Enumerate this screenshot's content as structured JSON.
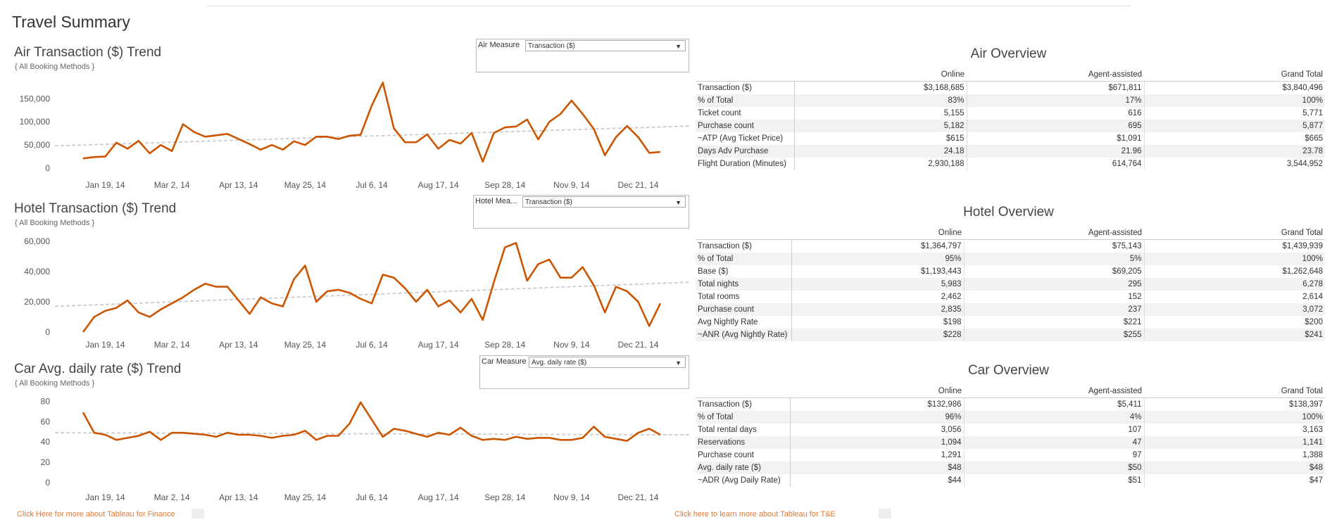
{
  "dashboard": {
    "title": "Travel Summary"
  },
  "colors": {
    "line": "#cc5500",
    "trend": "#cccccc",
    "link": "#e8762d",
    "row_alt": "#f2f2f2"
  },
  "charts": {
    "air": {
      "title": "Air Transaction ($) Trend",
      "subtitle": "{ All Booking Methods }",
      "filter_label": "Air Measure",
      "filter_value": "Transaction ($)"
    },
    "hotel": {
      "title": "Hotel Transaction ($) Trend",
      "subtitle": "{ All Booking Methods }",
      "filter_label": "Hotel Mea...",
      "filter_value": "Transaction ($)"
    },
    "car": {
      "title": "Car Avg. daily rate ($) Trend",
      "subtitle": "{ All Booking Methods }",
      "filter_label": "Car Measure",
      "filter_value": "Avg. daily rate ($)"
    }
  },
  "chart_data": [
    {
      "type": "line",
      "title": "Air Transaction ($) Trend",
      "x_tick_labels": [
        "Jan 19, 14",
        "Mar 2, 14",
        "Apr 13, 14",
        "May 25, 14",
        "Jul 6, 14",
        "Aug 17, 14",
        "Sep 28, 14",
        "Nov 9, 14",
        "Dec 21, 14"
      ],
      "x_range": [
        "Jan 5, 14",
        "Dec 28, 14"
      ],
      "y_ticks": [
        0,
        50000,
        100000,
        150000
      ],
      "y_tick_labels": [
        "0",
        "50,000",
        "100,000",
        "150,000"
      ],
      "ylim": [
        0,
        190000
      ],
      "values": [
        21000,
        24000,
        25000,
        55000,
        42000,
        59000,
        32000,
        50000,
        37000,
        95000,
        78000,
        68000,
        71000,
        74000,
        63000,
        52000,
        40000,
        50000,
        40000,
        58000,
        50000,
        68000,
        68000,
        63000,
        70000,
        72000,
        135000,
        185000,
        86000,
        56000,
        56000,
        73000,
        42000,
        61000,
        53000,
        76000,
        14000,
        76000,
        88000,
        90000,
        105000,
        62000,
        100000,
        117000,
        146000,
        117000,
        85000,
        28000,
        67000,
        91000,
        67000,
        33000,
        35000
      ],
      "trend_line": {
        "start": 48000,
        "end": 91000
      },
      "grid": false
    },
    {
      "type": "line",
      "title": "Hotel Transaction ($) Trend",
      "x_tick_labels": [
        "Jan 19, 14",
        "Mar 2, 14",
        "Apr 13, 14",
        "May 25, 14",
        "Jul 6, 14",
        "Aug 17, 14",
        "Sep 28, 14",
        "Nov 9, 14",
        "Dec 21, 14"
      ],
      "x_range": [
        "Jan 5, 14",
        "Dec 28, 14"
      ],
      "y_ticks": [
        0,
        20000,
        40000,
        60000
      ],
      "y_tick_labels": [
        "0",
        "20,000",
        "40,000",
        "60,000"
      ],
      "ylim": [
        0,
        61000
      ],
      "values": [
        0,
        10000,
        14000,
        16000,
        21000,
        13000,
        10000,
        15000,
        19000,
        23000,
        28000,
        32000,
        30000,
        30000,
        21000,
        12000,
        23000,
        19000,
        17000,
        35000,
        44000,
        20000,
        27000,
        28000,
        26000,
        22000,
        19000,
        38000,
        36000,
        29000,
        20000,
        28000,
        17000,
        21000,
        13000,
        22000,
        8000,
        33000,
        56000,
        59000,
        34000,
        45000,
        48000,
        36000,
        36000,
        43000,
        31000,
        13000,
        30000,
        27000,
        20000,
        4000,
        19000
      ],
      "trend_line": {
        "start": 17000,
        "end": 33000
      },
      "grid": false
    },
    {
      "type": "line",
      "title": "Car Avg. daily rate ($) Trend",
      "x_tick_labels": [
        "Jan 19, 14",
        "Mar 2, 14",
        "Apr 13, 14",
        "May 25, 14",
        "Jul 6, 14",
        "Aug 17, 14",
        "Sep 28, 14",
        "Nov 9, 14",
        "Dec 21, 14"
      ],
      "x_range": [
        "Jan 5, 14",
        "Dec 28, 14"
      ],
      "y_ticks": [
        0,
        20,
        40,
        60,
        80
      ],
      "y_tick_labels": [
        "0",
        "20",
        "40",
        "60",
        "80"
      ],
      "ylim": [
        0,
        83
      ],
      "values": [
        69,
        49,
        47,
        42,
        44,
        46,
        50,
        42,
        49,
        49,
        48,
        47,
        45,
        49,
        47,
        47,
        46,
        44,
        46,
        47,
        51,
        42,
        46,
        46,
        58,
        79,
        62,
        45,
        53,
        51,
        48,
        45,
        49,
        47,
        54,
        46,
        42,
        43,
        42,
        45,
        43,
        44,
        44,
        42,
        42,
        44,
        55,
        45,
        43,
        41,
        49,
        53,
        47
      ],
      "trend_line": {
        "start": 49,
        "end": 47
      },
      "grid": false
    }
  ],
  "overviews": {
    "columns": [
      "Online",
      "Agent-assisted",
      "Grand Total"
    ],
    "air": {
      "title": "Air Overview",
      "rows": [
        {
          "label": "Transaction ($)",
          "values": [
            "$3,168,685",
            "$671,811",
            "$3,840,496"
          ]
        },
        {
          "label": "% of Total",
          "values": [
            "83%",
            "17%",
            "100%"
          ]
        },
        {
          "label": "Ticket count",
          "values": [
            "5,155",
            "616",
            "5,771"
          ]
        },
        {
          "label": "Purchase count",
          "values": [
            "5,182",
            "695",
            "5,877"
          ]
        },
        {
          "label": "~ATP (Avg Ticket Price)",
          "values": [
            "$615",
            "$1,091",
            "$665"
          ]
        },
        {
          "label": "Days Adv Purchase",
          "values": [
            "24.18",
            "21.96",
            "23.78"
          ]
        },
        {
          "label": "Flight Duration (Minutes)",
          "values": [
            "2,930,188",
            "614,764",
            "3,544,952"
          ]
        }
      ]
    },
    "hotel": {
      "title": "Hotel Overview",
      "rows": [
        {
          "label": "Transaction ($)",
          "values": [
            "$1,364,797",
            "$75,143",
            "$1,439,939"
          ]
        },
        {
          "label": "% of Total",
          "values": [
            "95%",
            "5%",
            "100%"
          ]
        },
        {
          "label": "Base ($)",
          "values": [
            "$1,193,443",
            "$69,205",
            "$1,262,648"
          ]
        },
        {
          "label": "Total nights",
          "values": [
            "5,983",
            "295",
            "6,278"
          ]
        },
        {
          "label": "Total rooms",
          "values": [
            "2,462",
            "152",
            "2,614"
          ]
        },
        {
          "label": "Purchase count",
          "values": [
            "2,835",
            "237",
            "3,072"
          ]
        },
        {
          "label": "Avg Nightly Rate",
          "values": [
            "$198",
            "$221",
            "$200"
          ]
        },
        {
          "label": "~ANR (Avg Nightly Rate)",
          "values": [
            "$228",
            "$255",
            "$241"
          ]
        }
      ]
    },
    "car": {
      "title": "Car Overview",
      "rows": [
        {
          "label": "Transaction ($)",
          "values": [
            "$132,986",
            "$5,411",
            "$138,397"
          ]
        },
        {
          "label": "% of Total",
          "values": [
            "96%",
            "4%",
            "100%"
          ]
        },
        {
          "label": "Total rental days",
          "values": [
            "3,056",
            "107",
            "3,163"
          ]
        },
        {
          "label": "Reservations",
          "values": [
            "1,094",
            "47",
            "1,141"
          ]
        },
        {
          "label": "Purchase count",
          "values": [
            "1,291",
            "97",
            "1,388"
          ]
        },
        {
          "label": "Avg. daily rate ($)",
          "values": [
            "$48",
            "$50",
            "$48"
          ]
        },
        {
          "label": "~ADR (Avg Daily Rate)",
          "values": [
            "$44",
            "$51",
            "$47"
          ]
        }
      ]
    }
  },
  "footer": {
    "finance_link": "Click Here for more about Tableau for Finance",
    "te_link": "Click here to learn more about Tableau for T&E"
  }
}
